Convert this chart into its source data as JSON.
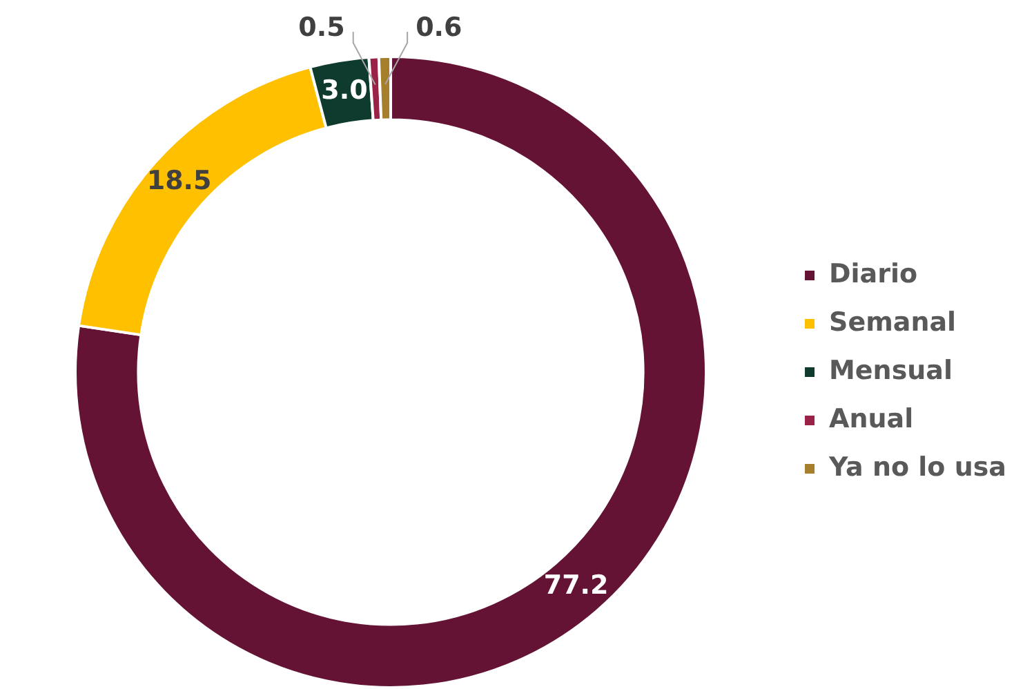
{
  "chart_data": {
    "type": "donut",
    "categories": [
      "Diario",
      "Semanal",
      "Mensual",
      "Anual",
      "Ya no lo usa"
    ],
    "values": [
      77.2,
      18.5,
      3.0,
      0.5,
      0.6
    ],
    "colors": [
      "#641334",
      "#ffc000",
      "#0e3b2e",
      "#9b2247",
      "#a57f2c"
    ],
    "value_labels": [
      "77.2",
      "18.5",
      "3.0",
      "0.5",
      "0.6"
    ],
    "legend": "right"
  }
}
